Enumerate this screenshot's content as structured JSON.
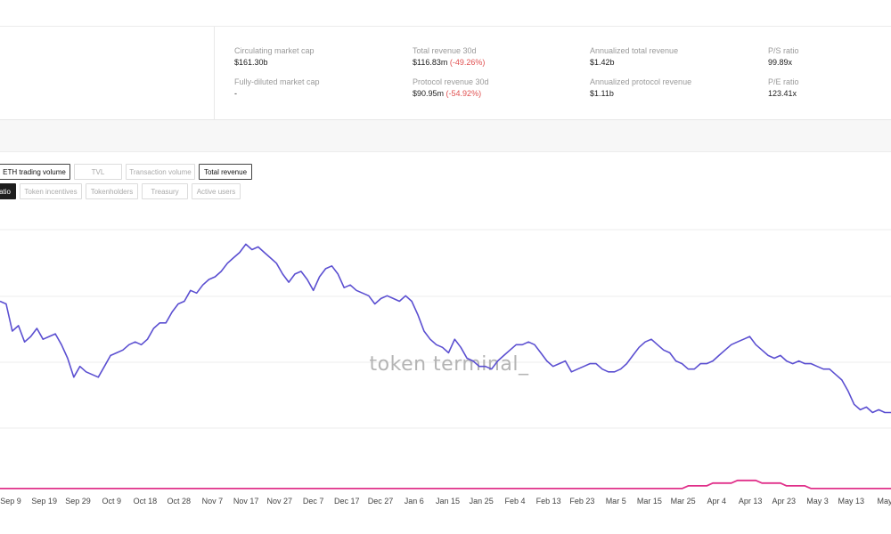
{
  "metrics": [
    {
      "label": "Circulating market cap",
      "value": "$161.30b",
      "change": ""
    },
    {
      "label": "Fully-diluted market cap",
      "value": "-",
      "change": ""
    },
    {
      "label": "Total revenue 30d",
      "value": "$116.83m",
      "change": "(-49.26%)"
    },
    {
      "label": "Protocol revenue 30d",
      "value": "$90.95m",
      "change": "(-54.92%)"
    },
    {
      "label": "Annualized total revenue",
      "value": "$1.42b",
      "change": ""
    },
    {
      "label": "Annualized protocol revenue",
      "value": "$1.11b",
      "change": ""
    },
    {
      "label": "P/S ratio",
      "value": "99.89x",
      "change": ""
    },
    {
      "label": "P/E ratio",
      "value": "123.41x",
      "change": ""
    }
  ],
  "metric_buttons_row1": [
    {
      "label": "ETH trading volume",
      "active": true
    },
    {
      "label": "TVL",
      "active": false
    },
    {
      "label": "Transaction volume",
      "active": false
    },
    {
      "label": "Total revenue",
      "active": true
    }
  ],
  "metric_buttons_row2": [
    {
      "label": "atio",
      "selected": true
    },
    {
      "label": "Token incentives",
      "selected": false
    },
    {
      "label": "Tokenholders",
      "selected": false
    },
    {
      "label": "Treasury",
      "selected": false
    },
    {
      "label": "Active users",
      "selected": false
    }
  ],
  "watermark": "token terminal_",
  "colors": {
    "series_1": "#5b4fd1",
    "series_2": "#e0308a",
    "grid": "#ececec",
    "negative_change": "#e05050"
  },
  "chart_data": {
    "type": "line",
    "title": "",
    "xlabel": "",
    "ylabel": "",
    "grid": true,
    "x_ticks": [
      "Sep 9",
      "Sep 19",
      "Sep 29",
      "Oct 9",
      "Oct 18",
      "Oct 28",
      "Nov 7",
      "Nov 17",
      "Nov 27",
      "Dec 7",
      "Dec 17",
      "Dec 27",
      "Jan 6",
      "Jan 15",
      "Jan 25",
      "Feb 4",
      "Feb 13",
      "Feb 23",
      "Mar 5",
      "Mar 15",
      "Mar 25",
      "Apr 4",
      "Apr 13",
      "Apr 23",
      "May 3",
      "May 13",
      "May"
    ],
    "ylim": [
      0,
      100
    ],
    "series": [
      {
        "values": [
          71,
          70,
          60,
          62,
          56,
          58,
          61,
          57,
          58,
          59,
          55,
          50,
          43,
          47,
          45,
          44,
          43,
          47,
          51,
          52,
          53,
          55,
          56,
          55,
          57,
          61,
          63,
          63,
          67,
          70,
          71,
          75,
          74,
          77,
          79,
          80,
          82,
          85,
          87,
          89,
          92,
          90,
          91,
          89,
          87,
          85,
          81,
          78,
          81,
          82,
          79,
          75,
          80,
          83,
          84,
          81,
          76,
          77,
          75,
          74,
          73,
          70,
          72,
          73,
          72,
          71,
          73,
          71,
          66,
          60,
          57,
          55,
          54,
          52,
          57,
          54,
          50,
          49,
          47,
          47,
          46,
          49,
          51,
          53,
          55,
          55,
          56,
          55,
          52,
          49,
          47,
          48,
          49,
          45,
          46,
          47,
          48,
          48,
          46,
          45,
          45,
          46,
          48,
          51,
          54,
          56,
          57,
          55,
          53,
          52,
          49,
          48,
          46,
          46,
          48,
          48,
          49,
          51,
          53,
          55,
          56,
          57,
          58,
          55,
          53,
          51,
          50,
          51,
          49,
          48,
          49,
          48,
          48,
          47,
          46,
          46,
          44,
          42,
          38,
          33,
          31,
          32,
          30,
          31,
          30,
          30
        ]
      },
      {
        "values": [
          2,
          2,
          2,
          2,
          2,
          2,
          2,
          2,
          2,
          2,
          2,
          2,
          2,
          2,
          2,
          2,
          2,
          2,
          2,
          2,
          2,
          2,
          2,
          2,
          2,
          2,
          2,
          2,
          2,
          2,
          2,
          2,
          2,
          2,
          2,
          2,
          2,
          2,
          2,
          2,
          2,
          2,
          2,
          2,
          2,
          2,
          2,
          2,
          2,
          2,
          2,
          2,
          2,
          2,
          2,
          2,
          2,
          2,
          2,
          2,
          2,
          2,
          2,
          2,
          2,
          2,
          2,
          2,
          2,
          2,
          2,
          2,
          2,
          2,
          2,
          2,
          2,
          2,
          2,
          2,
          2,
          2,
          2,
          2,
          2,
          2,
          2,
          2,
          2,
          2,
          2,
          2,
          2,
          2,
          2,
          2,
          2,
          2,
          2,
          2,
          2,
          2,
          2,
          2,
          2,
          2,
          2,
          2,
          2,
          2,
          2,
          2,
          3,
          3,
          3,
          3,
          4,
          4,
          4,
          4,
          5,
          5,
          5,
          5,
          4,
          4,
          4,
          4,
          3,
          3,
          3,
          3,
          2,
          2,
          2,
          2,
          2,
          2,
          2,
          2,
          2,
          2,
          2,
          2,
          2,
          2
        ]
      }
    ]
  }
}
